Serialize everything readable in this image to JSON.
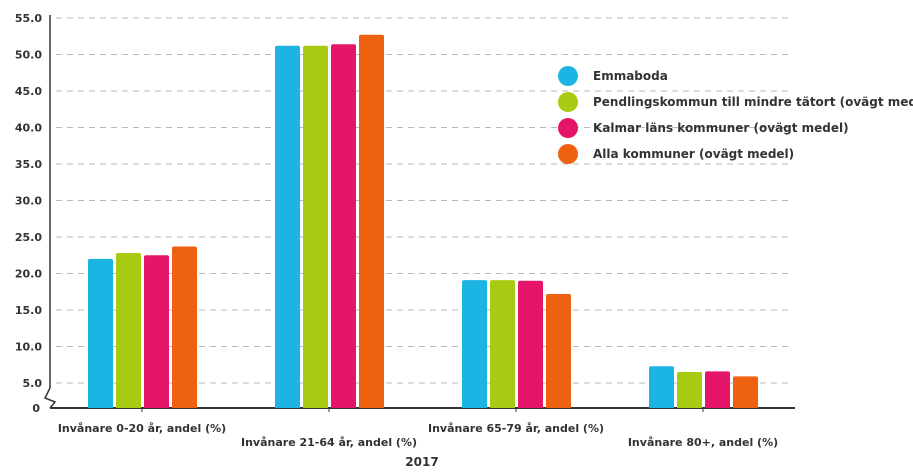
{
  "chart_data": {
    "type": "bar",
    "xlabel": "2017",
    "ylabel": "",
    "ylim": [
      0,
      55
    ],
    "axis_break": true,
    "yticks": [
      "0",
      "5.0",
      "10.0",
      "15.0",
      "20.0",
      "25.0",
      "30.0",
      "35.0",
      "40.0",
      "45.0",
      "50.0",
      "55.0"
    ],
    "grid": true,
    "legend_position": "top-right",
    "categories": [
      "Invånare 0-20 år, andel (%)",
      "Invånare 21-64 år, andel (%)",
      "Invånare 65-79 år, andel (%)",
      "Invånare 80+, andel (%)"
    ],
    "series": [
      {
        "name": "Emmaboda",
        "color": "#1cb4e3",
        "values": [
          22.0,
          51.2,
          19.1,
          7.3
        ]
      },
      {
        "name": "Pendlingskommun till mindre tätort (ovägt medel)",
        "color": "#a6cb12",
        "values": [
          22.8,
          51.2,
          19.1,
          6.5
        ]
      },
      {
        "name": "Kalmar läns kommuner (ovägt medel)",
        "color": "#e5156a",
        "values": [
          22.5,
          51.4,
          19.0,
          6.6
        ]
      },
      {
        "name": "Alla kommuner (ovägt medel)",
        "color": "#ee6110",
        "values": [
          23.7,
          52.7,
          17.2,
          5.9
        ]
      }
    ]
  }
}
